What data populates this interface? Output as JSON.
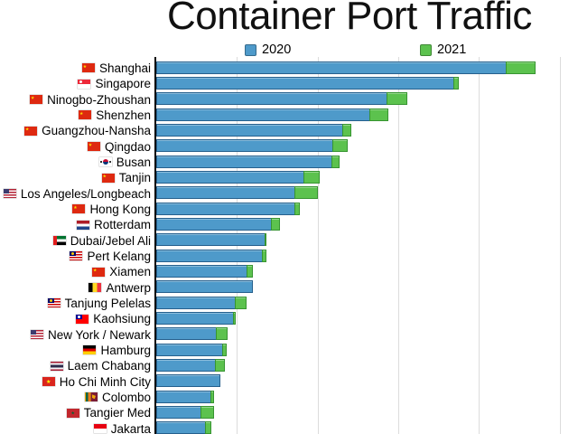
{
  "legend": {
    "items": [
      {
        "label": "2020",
        "color": "#4E9ACA"
      },
      {
        "label": "2021",
        "color": "#5CC24E"
      }
    ]
  },
  "chart_data": {
    "type": "bar",
    "orientation": "horizontal",
    "title": "Container Port Traffic",
    "grid": true,
    "legend_position": "top",
    "xlim": [
      0,
      52.3
    ],
    "x_gridlines": [
      10,
      20,
      30,
      40,
      50
    ],
    "categories": [
      "Shanghai",
      "Singapore",
      "Ninogbo-Zhoushan",
      "Shenzhen",
      "Guangzhou-Nansha",
      "Qingdao",
      "Busan",
      "Tanjin",
      "Los Angeles/Longbeach",
      "Hong Kong",
      "Rotterdam",
      "Dubai/Jebel Ali",
      "Pert Kelang",
      "Xiamen",
      "Antwerp",
      "Tanjung Pelelas",
      "Kaohsiung",
      "New York / Newark",
      "Hamburg",
      "Laem Chabang",
      "Ho Chi Minh City",
      "Colombo",
      "Tangier Med",
      "Jakarta"
    ],
    "flags": [
      "china",
      "singapore",
      "china",
      "china",
      "china",
      "china",
      "south-korea",
      "china",
      "usa",
      "china",
      "netherlands",
      "uae",
      "malaysia",
      "china",
      "belgium",
      "malaysia",
      "taiwan",
      "usa",
      "germany",
      "thailand",
      "vietnam",
      "sri-lanka",
      "morocco",
      "indonesia"
    ],
    "series": [
      {
        "name": "2020",
        "color": "#4E9ACA",
        "values": [
          43.5,
          36.9,
          28.7,
          26.5,
          23.2,
          22.0,
          21.8,
          18.4,
          17.3,
          17.2,
          14.3,
          13.5,
          13.2,
          11.3,
          12.0,
          9.8,
          9.6,
          7.5,
          8.3,
          7.4,
          7.9,
          6.8,
          5.6,
          6.2
        ]
      },
      {
        "name": "2021",
        "color": "#5CC24E",
        "values": [
          47.0,
          37.5,
          31.1,
          28.8,
          24.2,
          23.7,
          22.7,
          20.3,
          20.1,
          17.8,
          15.3,
          13.7,
          13.7,
          12.0,
          12.0,
          11.2,
          9.9,
          8.9,
          8.7,
          8.5,
          7.9,
          7.2,
          7.2,
          6.8
        ]
      }
    ]
  }
}
